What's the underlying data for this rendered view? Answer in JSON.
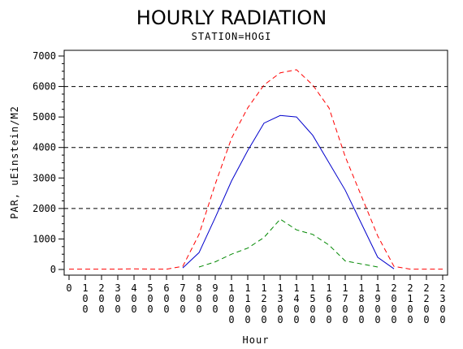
{
  "chart_data": {
    "type": "line",
    "title": "HOURLY RADIATION",
    "subtitle": "STATION=HOGI",
    "xlabel": "Hour",
    "ylabel": "PAR, uEinstein/M2",
    "xlim": [
      0,
      2300
    ],
    "ylim": [
      0,
      7000
    ],
    "x_ticks": [
      0,
      100,
      200,
      300,
      400,
      500,
      600,
      700,
      800,
      900,
      1000,
      1100,
      1200,
      1300,
      1400,
      1500,
      1600,
      1700,
      1800,
      1900,
      2000,
      2100,
      2200,
      2300
    ],
    "y_ticks": [
      0,
      1000,
      2000,
      3000,
      4000,
      5000,
      6000,
      7000
    ],
    "gridlines_y": [
      2000,
      4000,
      6000
    ],
    "series": [
      {
        "color": "#ff0000",
        "dash": "dashed",
        "x": [
          0,
          100,
          200,
          300,
          400,
          500,
          600,
          700,
          800,
          900,
          1000,
          1100,
          1200,
          1300,
          1400,
          1500,
          1600,
          1700,
          1800,
          1900,
          2000,
          2100,
          2200,
          2300
        ],
        "values": [
          10,
          10,
          10,
          10,
          20,
          10,
          10,
          100,
          1150,
          2800,
          4300,
          5300,
          6050,
          6450,
          6550,
          6050,
          5300,
          3700,
          2400,
          1100,
          100,
          10,
          10,
          10
        ]
      },
      {
        "color": "#0000cc",
        "dash": "solid",
        "x": [
          700,
          800,
          900,
          1000,
          1100,
          1200,
          1300,
          1400,
          1500,
          1600,
          1700,
          1800,
          1900,
          2000
        ],
        "values": [
          50,
          550,
          1700,
          2900,
          3900,
          4800,
          5050,
          5000,
          4400,
          3500,
          2600,
          1500,
          400,
          20
        ]
      },
      {
        "color": "#008800",
        "dash": "dashed",
        "x": [
          800,
          900,
          1000,
          1100,
          1200,
          1300,
          1400,
          1500,
          1600,
          1700,
          1800,
          1900
        ],
        "values": [
          80,
          250,
          500,
          700,
          1050,
          1650,
          1300,
          1150,
          800,
          280,
          180,
          80
        ]
      }
    ]
  }
}
